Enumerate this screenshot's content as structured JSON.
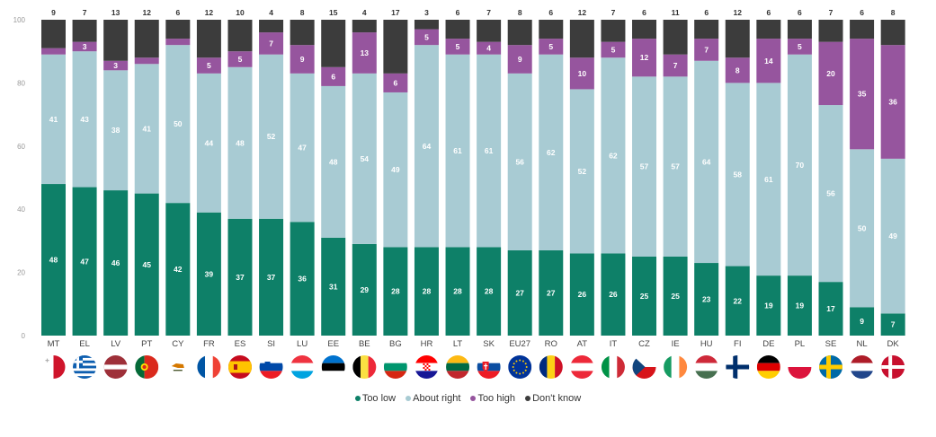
{
  "chart_data": {
    "type": "bar",
    "stacked": true,
    "title": "",
    "xlabel": "",
    "ylabel": "",
    "ylim": [
      0,
      100
    ],
    "yticks": [
      "0",
      "20",
      "40",
      "60",
      "80",
      "100"
    ],
    "grid": false,
    "legend_position": "bottom",
    "categories": [
      "MT",
      "EL",
      "LV",
      "PT",
      "CY",
      "FR",
      "ES",
      "SI",
      "LU",
      "EE",
      "BE",
      "BG",
      "HR",
      "LT",
      "SK",
      "EU27",
      "RO",
      "AT",
      "IT",
      "CZ",
      "IE",
      "HU",
      "FI",
      "DE",
      "PL",
      "SE",
      "NL",
      "DK"
    ],
    "flags": [
      "flag-mt-icon",
      "flag-el-icon",
      "flag-lv-icon",
      "flag-pt-icon",
      "flag-cy-icon",
      "flag-fr-icon",
      "flag-es-icon",
      "flag-si-icon",
      "flag-lu-icon",
      "flag-ee-icon",
      "flag-be-icon",
      "flag-bg-icon",
      "flag-hr-icon",
      "flag-lt-icon",
      "flag-sk-icon",
      "flag-eu-icon",
      "flag-ro-icon",
      "flag-at-icon",
      "flag-it-icon",
      "flag-cz-icon",
      "flag-ie-icon",
      "flag-hu-icon",
      "flag-fi-icon",
      "flag-de-icon",
      "flag-pl-icon",
      "flag-se-icon",
      "flag-nl-icon",
      "flag-dk-icon"
    ],
    "series": [
      {
        "name": "Too low",
        "color": "#0e8068",
        "values": [
          48,
          47,
          46,
          45,
          42,
          39,
          37,
          37,
          36,
          31,
          29,
          28,
          28,
          28,
          28,
          27,
          27,
          26,
          26,
          25,
          25,
          23,
          22,
          19,
          19,
          17,
          9,
          7
        ]
      },
      {
        "name": "About right",
        "color": "#a8cbd3",
        "values": [
          41,
          43,
          38,
          41,
          50,
          44,
          48,
          52,
          47,
          48,
          54,
          49,
          64,
          61,
          61,
          56,
          62,
          52,
          62,
          57,
          57,
          64,
          58,
          61,
          70,
          56,
          50,
          49
        ]
      },
      {
        "name": "Too high",
        "color": "#96559e",
        "values": [
          2,
          3,
          3,
          2,
          2,
          5,
          5,
          7,
          9,
          6,
          13,
          6,
          5,
          5,
          4,
          9,
          5,
          10,
          5,
          12,
          7,
          7,
          8,
          14,
          5,
          20,
          35,
          36
        ]
      },
      {
        "name": "Don't know",
        "color": "#3c3c3c",
        "values": [
          9,
          7,
          13,
          12,
          6,
          12,
          10,
          4,
          8,
          15,
          4,
          17,
          3,
          6,
          7,
          8,
          6,
          12,
          7,
          6,
          11,
          6,
          12,
          6,
          6,
          7,
          6,
          8
        ]
      }
    ]
  }
}
